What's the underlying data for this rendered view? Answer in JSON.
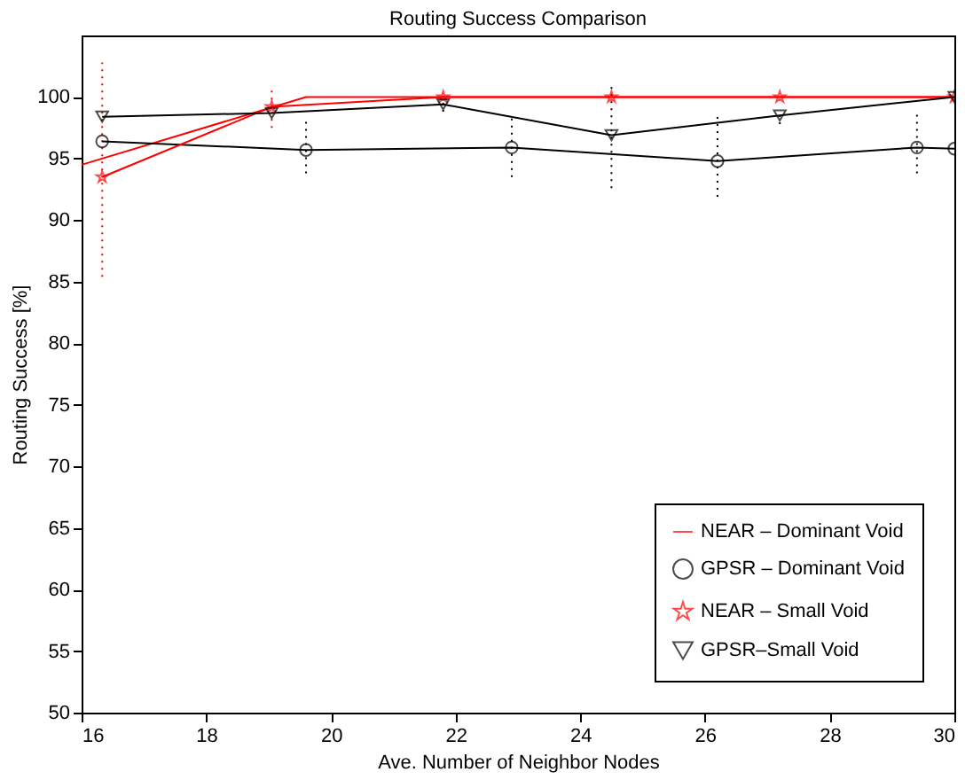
{
  "chart_data": {
    "type": "line",
    "title": "Routing Success Comparison",
    "xlabel": "Ave. Number of Neighbor Nodes",
    "ylabel": "Routing Success [%]",
    "xlim": [
      16,
      30
    ],
    "xticks": [
      16,
      18,
      20,
      22,
      24,
      26,
      28,
      30
    ],
    "ylim": [
      50,
      105
    ],
    "yticks": [
      50,
      55,
      60,
      65,
      70,
      75,
      80,
      85,
      90,
      95,
      100
    ],
    "grid": false,
    "legend": "bottom right",
    "line_style": "solid",
    "series": [
      {
        "name": "NEAR – Dominant Void",
        "color": "#ff0000",
        "marker": "none",
        "x": [
          16,
          19.6,
          22.9,
          26.2,
          29.4,
          30
        ],
        "values": [
          94.5,
          100,
          100,
          100,
          100,
          100
        ]
      },
      {
        "name": "GPSR – Dominant Void",
        "color": "#000000",
        "marker": "circle",
        "x": [
          16.33,
          19.6,
          22.9,
          26.2,
          29.4,
          30
        ],
        "values": [
          96.4,
          95.7,
          95.9,
          94.8,
          95.9,
          95.8
        ],
        "errors": [
          null,
          [
            93.8,
            98.2
          ],
          [
            93.5,
            98.6
          ],
          [
            91.9,
            98.4
          ],
          [
            93.8,
            98.9
          ],
          null
        ]
      },
      {
        "name": "NEAR – Small Void",
        "color": "#ff0000",
        "marker": "star",
        "x": [
          16.33,
          19.05,
          21.8,
          24.5,
          27.2,
          30
        ],
        "values": [
          93.5,
          99.2,
          100,
          100,
          100,
          100
        ],
        "errors": [
          [
            85.4,
            102.8
          ],
          [
            97.5,
            100.7
          ],
          null,
          null,
          null,
          null
        ]
      },
      {
        "name": "GPSR–Small Void",
        "color": "#000000",
        "marker": "triangle",
        "x": [
          16.33,
          19.05,
          21.8,
          24.5,
          27.2,
          30
        ],
        "values": [
          98.4,
          98.7,
          99.4,
          96.9,
          98.5,
          100
        ],
        "errors": [
          null,
          null,
          [
            98.8,
            100.2
          ],
          [
            92.6,
            101
          ],
          [
            97.8,
            98.9
          ],
          null
        ]
      }
    ]
  }
}
